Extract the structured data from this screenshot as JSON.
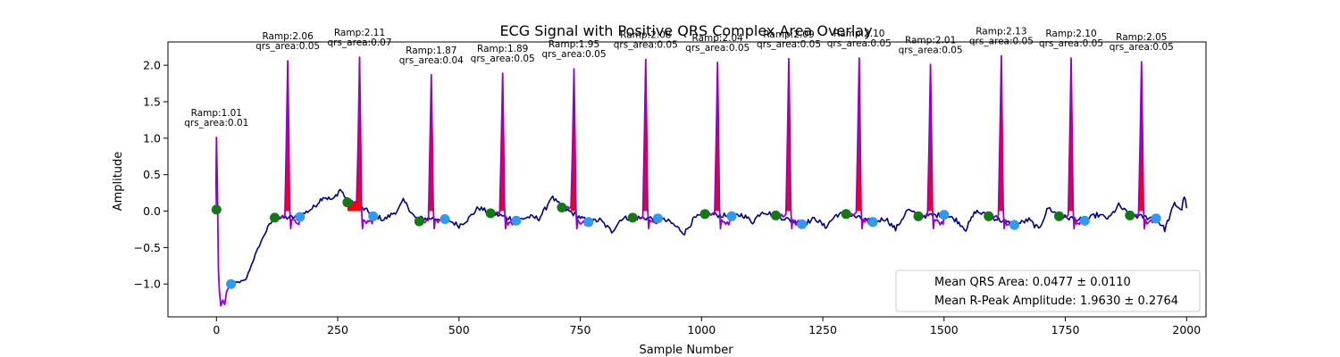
{
  "chart_data": {
    "type": "line",
    "title": "ECG Signal with Positive QRS Complex Area Overlay",
    "xlabel": "Sample Number",
    "ylabel": "Amplitude",
    "xlim": [
      -100,
      2040
    ],
    "ylim": [
      -1.45,
      2.32
    ],
    "xticks": [
      0,
      250,
      500,
      750,
      1000,
      1250,
      1500,
      1750,
      2000
    ],
    "yticks": [
      -1.0,
      -0.5,
      0.0,
      0.5,
      1.0,
      1.5,
      2.0
    ],
    "grid": false,
    "legend_position": "lower-right",
    "legend": [
      "Mean QRS Area: 0.0477 ± 0.0110",
      "Mean R-Peak Amplitude: 1.9630 ± 0.2764"
    ],
    "colors": {
      "signal": "#00008b",
      "qrs_segment": "#9400d3",
      "qrs_area_fill": "#ff0000",
      "qrs_onset_marker": "#137a13",
      "qrs_offset_marker": "#2f9af2"
    },
    "beats": [
      {
        "r": 0,
        "amp": 1.01,
        "label_top": "Ramp:1.01",
        "label_bottom": "qrs_area:0.01"
      },
      {
        "r": 147,
        "amp": 2.06,
        "label_top": "Ramp:2.06",
        "label_bottom": "qrs_area:0.05"
      },
      {
        "r": 295,
        "amp": 2.11,
        "label_top": "Ramp:2.11",
        "label_bottom": "qrs_area:0.07"
      },
      {
        "r": 443,
        "amp": 1.87,
        "label_top": "Ramp:1.87",
        "label_bottom": "qrs_area:0.04"
      },
      {
        "r": 590,
        "amp": 1.89,
        "label_top": "Ramp:1.89",
        "label_bottom": "qrs_area:0.05"
      },
      {
        "r": 737,
        "amp": 1.95,
        "label_top": "Ramp:1.95",
        "label_bottom": "qrs_area:0.05"
      },
      {
        "r": 885,
        "amp": 2.08,
        "label_top": "Ramp:2.08",
        "label_bottom": "qrs_area:0.05"
      },
      {
        "r": 1033,
        "amp": 2.04,
        "label_top": "Ramp:2.04",
        "label_bottom": "qrs_area:0.05"
      },
      {
        "r": 1180,
        "amp": 2.09,
        "label_top": "Ramp:2.09",
        "label_bottom": "qrs_area:0.05"
      },
      {
        "r": 1325,
        "amp": 2.1,
        "label_top": "Ramp:2.10",
        "label_bottom": "qrs_area:0.05"
      },
      {
        "r": 1472,
        "amp": 2.01,
        "label_top": "Ramp:2.01",
        "label_bottom": "qrs_area:0.05"
      },
      {
        "r": 1618,
        "amp": 2.13,
        "label_top": "Ramp:2.13",
        "label_bottom": "qrs_area:0.05"
      },
      {
        "r": 1762,
        "amp": 2.1,
        "label_top": "Ramp:2.10",
        "label_bottom": "qrs_area:0.05"
      },
      {
        "r": 1907,
        "amp": 2.05,
        "label_top": "Ramp:2.05",
        "label_bottom": "qrs_area:0.05"
      }
    ],
    "onset_markers": [
      {
        "x": 0,
        "y": 0.02
      },
      {
        "x": 120,
        "y": -0.09
      },
      {
        "x": 270,
        "y": 0.12
      },
      {
        "x": 418,
        "y": -0.14
      },
      {
        "x": 565,
        "y": -0.03
      },
      {
        "x": 712,
        "y": 0.05
      },
      {
        "x": 858,
        "y": -0.09
      },
      {
        "x": 1007,
        "y": -0.04
      },
      {
        "x": 1153,
        "y": -0.06
      },
      {
        "x": 1298,
        "y": -0.04
      },
      {
        "x": 1447,
        "y": -0.07
      },
      {
        "x": 1592,
        "y": -0.07
      },
      {
        "x": 1737,
        "y": -0.07
      },
      {
        "x": 1883,
        "y": -0.06
      }
    ],
    "offset_markers": [
      {
        "x": 30,
        "y": -1.0
      },
      {
        "x": 172,
        "y": -0.08
      },
      {
        "x": 323,
        "y": -0.07
      },
      {
        "x": 471,
        "y": -0.11
      },
      {
        "x": 618,
        "y": -0.13
      },
      {
        "x": 767,
        "y": -0.15
      },
      {
        "x": 910,
        "y": -0.1
      },
      {
        "x": 1062,
        "y": -0.07
      },
      {
        "x": 1207,
        "y": -0.18
      },
      {
        "x": 1353,
        "y": -0.15
      },
      {
        "x": 1500,
        "y": -0.05
      },
      {
        "x": 1645,
        "y": -0.19
      },
      {
        "x": 1790,
        "y": -0.13
      },
      {
        "x": 1937,
        "y": -0.1
      }
    ],
    "baseline": [
      {
        "x": 30,
        "y": -1.0
      },
      {
        "x": 60,
        "y": -0.95
      },
      {
        "x": 80,
        "y": -0.6
      },
      {
        "x": 100,
        "y": -0.3
      },
      {
        "x": 118,
        "y": -0.1
      },
      {
        "x": 170,
        "y": -0.08
      },
      {
        "x": 200,
        "y": 0.05
      },
      {
        "x": 220,
        "y": 0.2
      },
      {
        "x": 240,
        "y": 0.15
      },
      {
        "x": 255,
        "y": 0.3
      },
      {
        "x": 270,
        "y": 0.15
      },
      {
        "x": 325,
        "y": -0.05
      },
      {
        "x": 345,
        "y": -0.12
      },
      {
        "x": 360,
        "y": -0.05
      },
      {
        "x": 375,
        "y": 0.02
      },
      {
        "x": 385,
        "y": 0.14
      },
      {
        "x": 395,
        "y": 0.06
      },
      {
        "x": 410,
        "y": -0.1
      },
      {
        "x": 472,
        "y": -0.1
      },
      {
        "x": 500,
        "y": -0.2
      },
      {
        "x": 520,
        "y": -0.1
      },
      {
        "x": 540,
        "y": 0.05
      },
      {
        "x": 565,
        "y": -0.03
      },
      {
        "x": 620,
        "y": -0.12
      },
      {
        "x": 645,
        "y": -0.08
      },
      {
        "x": 665,
        "y": -0.1
      },
      {
        "x": 680,
        "y": 0.05
      },
      {
        "x": 690,
        "y": 0.2
      },
      {
        "x": 712,
        "y": 0.05
      },
      {
        "x": 768,
        "y": -0.15
      },
      {
        "x": 790,
        "y": -0.12
      },
      {
        "x": 815,
        "y": -0.28
      },
      {
        "x": 835,
        "y": -0.1
      },
      {
        "x": 858,
        "y": -0.09
      },
      {
        "x": 910,
        "y": -0.1
      },
      {
        "x": 935,
        "y": -0.15
      },
      {
        "x": 965,
        "y": -0.3
      },
      {
        "x": 985,
        "y": -0.1
      },
      {
        "x": 1007,
        "y": -0.04
      },
      {
        "x": 1062,
        "y": -0.07
      },
      {
        "x": 1085,
        "y": -0.05
      },
      {
        "x": 1105,
        "y": -0.15
      },
      {
        "x": 1125,
        "y": 0.0
      },
      {
        "x": 1153,
        "y": -0.06
      },
      {
        "x": 1208,
        "y": -0.18
      },
      {
        "x": 1235,
        "y": -0.1
      },
      {
        "x": 1255,
        "y": -0.22
      },
      {
        "x": 1278,
        "y": -0.05
      },
      {
        "x": 1298,
        "y": -0.04
      },
      {
        "x": 1353,
        "y": -0.15
      },
      {
        "x": 1380,
        "y": -0.1
      },
      {
        "x": 1400,
        "y": -0.25
      },
      {
        "x": 1425,
        "y": 0.02
      },
      {
        "x": 1447,
        "y": -0.07
      },
      {
        "x": 1500,
        "y": -0.05
      },
      {
        "x": 1525,
        "y": -0.12
      },
      {
        "x": 1545,
        "y": -0.25
      },
      {
        "x": 1565,
        "y": 0.0
      },
      {
        "x": 1592,
        "y": -0.07
      },
      {
        "x": 1645,
        "y": -0.19
      },
      {
        "x": 1675,
        "y": -0.12
      },
      {
        "x": 1695,
        "y": -0.25
      },
      {
        "x": 1715,
        "y": 0.05
      },
      {
        "x": 1737,
        "y": -0.07
      },
      {
        "x": 1790,
        "y": -0.13
      },
      {
        "x": 1815,
        "y": -0.05
      },
      {
        "x": 1840,
        "y": -0.1
      },
      {
        "x": 1860,
        "y": 0.08
      },
      {
        "x": 1883,
        "y": -0.06
      },
      {
        "x": 1937,
        "y": -0.1
      },
      {
        "x": 1955,
        "y": -0.25
      },
      {
        "x": 1975,
        "y": 0.1
      },
      {
        "x": 1990,
        "y": 0.02
      },
      {
        "x": 1995,
        "y": 0.22
      },
      {
        "x": 2000,
        "y": 0.04
      }
    ]
  }
}
